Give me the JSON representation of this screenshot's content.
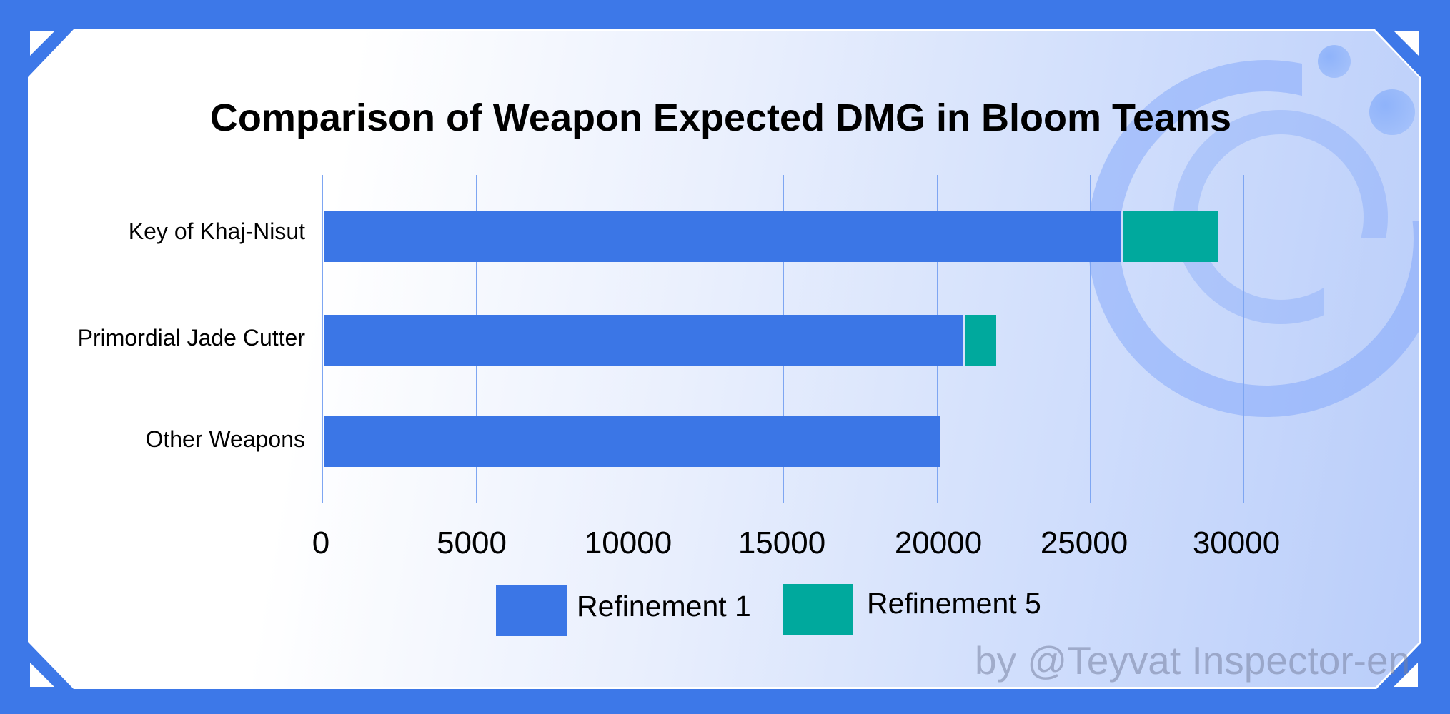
{
  "chart_data": {
    "type": "bar",
    "orientation": "horizontal",
    "stacked": true,
    "title": "Comparison of Weapon Expected DMG in Bloom Teams",
    "categories": [
      "Key of Khaj-Nisut",
      "Primordial Jade Cutter",
      "Other Weapons"
    ],
    "series": [
      {
        "name": "Refinement 1",
        "color": "#3b76e6",
        "values": [
          26000,
          20850,
          20100
        ]
      },
      {
        "name": "Refinement 5",
        "color": "#00a99d",
        "values": [
          3100,
          1000,
          0
        ]
      }
    ],
    "totals": [
      29100,
      21850,
      20100
    ],
    "xlabel": "",
    "ylabel": "",
    "xlim": [
      0,
      30000
    ],
    "xticks": [
      "0",
      "5000",
      "10000",
      "15000",
      "20000",
      "25000",
      "30000"
    ],
    "grid": true,
    "legend_position": "bottom"
  },
  "title": "Comparison of Weapon Expected DMG in Bloom Teams",
  "yaxis": {
    "labels": [
      "Key of Khaj-Nisut",
      "Primordial Jade Cutter",
      "Other Weapons"
    ]
  },
  "xaxis": {
    "ticks": [
      "0",
      "5000",
      "10000",
      "15000",
      "20000",
      "25000",
      "30000"
    ]
  },
  "legend": {
    "items": [
      {
        "label": "Refinement 1",
        "color": "#3b76e6"
      },
      {
        "label": "Refinement 5",
        "color": "#00a99d"
      }
    ]
  },
  "watermark": "by @Teyvat Inspector-en",
  "colors": {
    "frame": "#3d78e8",
    "refinement1": "#3b76e6",
    "refinement5": "#00a99d",
    "grid": "#7ea6f2"
  }
}
